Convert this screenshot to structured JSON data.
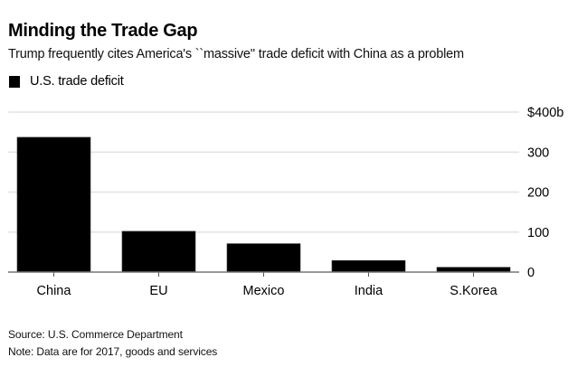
{
  "chart_data": {
    "type": "bar",
    "title": "Minding the Trade Gap",
    "subtitle": "Trump frequently cites America's ``massive'' trade deficit with China as a problem",
    "legend": [
      {
        "label": "U.S. trade deficit",
        "color": "#000000"
      }
    ],
    "legend_position": "top-left",
    "categories": [
      "China",
      "EU",
      "Mexico",
      "India",
      "S.Korea"
    ],
    "series": [
      {
        "name": "U.S. trade deficit",
        "values": [
          337,
          102,
          71,
          29,
          12
        ],
        "color": "#000000"
      }
    ],
    "xlabel": "",
    "ylabel": "",
    "ylim": [
      0,
      400
    ],
    "yticks": [
      0,
      100,
      200,
      300,
      400
    ],
    "ytick_labels": [
      "0",
      "100",
      "200",
      "300",
      "$400b"
    ],
    "yaxis_side": "right",
    "grid": true,
    "source": "Source: U.S. Commerce Department",
    "note": "Note: Data are for 2017, goods and services"
  }
}
